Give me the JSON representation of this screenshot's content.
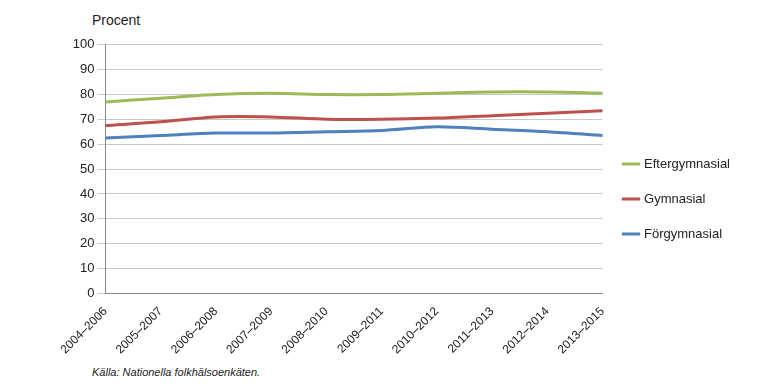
{
  "chart_data": {
    "type": "line",
    "y_label": "Procent",
    "source": "Källa: Nationella folkhälsoenkäten.",
    "categories": [
      "2004–2006",
      "2005–2007",
      "2006–2008",
      "2007–2009",
      "2008–2010",
      "2009–2011",
      "2010–2012",
      "2011–2013",
      "2012–2014",
      "2013–2015"
    ],
    "series": [
      {
        "name": "Eftergymnasial",
        "color": "#9bbb59",
        "values": [
          77,
          78.5,
          80,
          80.5,
          80,
          80,
          80.5,
          81,
          81,
          80.5
        ]
      },
      {
        "name": "Gymnasial",
        "color": "#c0504d",
        "values": [
          67.5,
          69,
          71,
          71,
          70,
          70,
          70.5,
          71.5,
          72.5,
          73.5
        ]
      },
      {
        "name": "Förgymnasial",
        "color": "#4f81bd",
        "values": [
          62.5,
          63.5,
          64.5,
          64.5,
          65,
          65.5,
          67,
          66,
          65,
          63.5
        ]
      }
    ],
    "ylim": [
      0,
      100
    ],
    "yticks": [
      0,
      10,
      20,
      30,
      40,
      50,
      60,
      70,
      80,
      90,
      100
    ],
    "grid": true,
    "legend": "right"
  }
}
